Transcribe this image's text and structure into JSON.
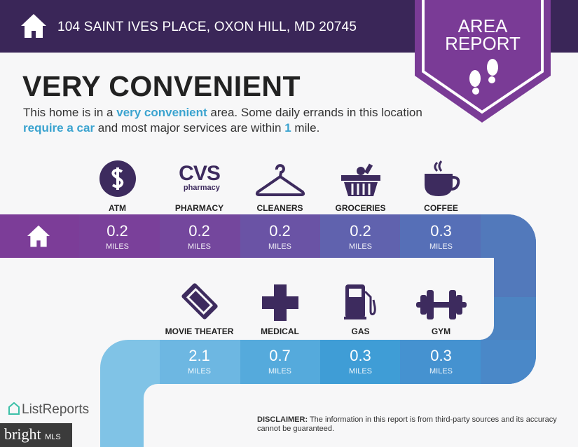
{
  "header": {
    "address": "104 SAINT IVES PLACE, OXON HILL, MD 20745",
    "badge_line1": "AREA",
    "badge_line2": "REPORT"
  },
  "title": "VERY CONVENIENT",
  "summary": {
    "p1": "This home is in a ",
    "h1": "very convenient",
    "p2": " area. Some daily errands in this location ",
    "h2": "require a car",
    "p3": " and most major services are within ",
    "h3": "1",
    "p4": " mile."
  },
  "row1": [
    {
      "label": "ATM",
      "value": "0.2",
      "unit": "MILES",
      "icon": "dollar-icon"
    },
    {
      "label": "PHARMACY",
      "value": "0.2",
      "unit": "MILES",
      "icon": "cvs-pharmacy-logo",
      "logo_text": "CVS",
      "logo_sub": "pharmacy"
    },
    {
      "label": "CLEANERS",
      "value": "0.2",
      "unit": "MILES",
      "icon": "hanger-icon"
    },
    {
      "label": "GROCERIES",
      "value": "0.2",
      "unit": "MILES",
      "icon": "basket-icon"
    },
    {
      "label": "COFFEE",
      "value": "0.3",
      "unit": "MILES",
      "icon": "coffee-cup-icon"
    }
  ],
  "row2": [
    {
      "label": "MOVIE THEATER",
      "value": "2.1",
      "unit": "MILES",
      "icon": "ticket-icon"
    },
    {
      "label": "MEDICAL",
      "value": "0.7",
      "unit": "MILES",
      "icon": "medical-cross-icon"
    },
    {
      "label": "GAS",
      "value": "0.3",
      "unit": "MILES",
      "icon": "gas-pump-icon"
    },
    {
      "label": "GYM",
      "value": "0.3",
      "unit": "MILES",
      "icon": "dumbbell-icon"
    }
  ],
  "disclaimer": {
    "label": "DISCLAIMER:",
    "text": " The information in this report is from third-party sources and its accuracy cannot be guaranteed."
  },
  "footer": {
    "brand": "ListReports",
    "watermark": "bright",
    "watermark_sub": "MLS"
  },
  "colors": {
    "header": "#3a2658",
    "accent": "#3aa3cf",
    "icon": "#3d2b5e",
    "badge": "#7a3b96"
  }
}
